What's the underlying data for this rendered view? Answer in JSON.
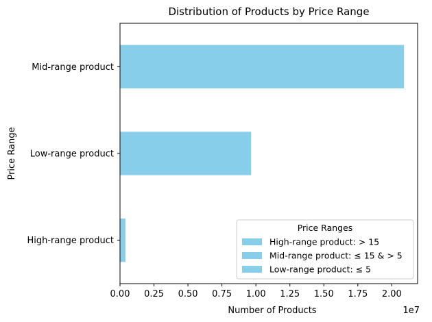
{
  "chart_data": {
    "type": "bar",
    "orientation": "horizontal",
    "title": "Distribution of Products by Price Range",
    "xlabel": "Number of Products",
    "ylabel": "Price Range",
    "x_scale_label": "1e7",
    "categories": [
      "High-range product",
      "Low-range product",
      "Mid-range product"
    ],
    "values": [
      400000,
      9650000,
      20900000
    ],
    "xlim": [
      0,
      21900000
    ],
    "x_ticks": [
      0,
      2500000,
      5000000,
      7500000,
      10000000,
      12500000,
      15000000,
      17500000,
      20000000
    ],
    "x_tick_labels": [
      "0.00",
      "0.25",
      "0.50",
      "0.75",
      "1.00",
      "1.25",
      "1.50",
      "1.75",
      "2.00"
    ],
    "bar_color": "#87ceeb",
    "grid": false,
    "legend": {
      "title": "Price Ranges",
      "placement": "lower-right",
      "entries": [
        "High-range product: > 15",
        "Mid-range product: ≤ 15 & > 5",
        "Low-range product: ≤ 5"
      ]
    }
  }
}
